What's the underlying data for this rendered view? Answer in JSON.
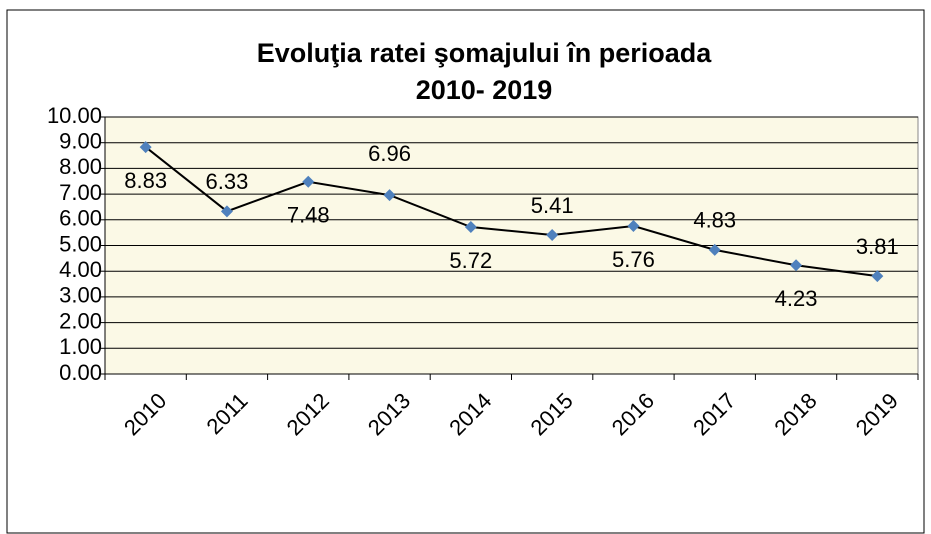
{
  "chart_data": {
    "type": "line",
    "title": [
      "Evoluţia ratei şomajului în perioada",
      "2010- 2019"
    ],
    "categories": [
      "2010",
      "2011",
      "2012",
      "2013",
      "2014",
      "2015",
      "2016",
      "2017",
      "2018",
      "2019"
    ],
    "values": [
      8.83,
      6.33,
      7.48,
      6.96,
      5.72,
      5.41,
      5.76,
      4.83,
      4.23,
      3.81
    ],
    "line_color": "#000000",
    "marker_color": "#4f81bd",
    "ylim": [
      0,
      10
    ],
    "yticks": [
      {
        "value": 0,
        "label": "0.00"
      },
      {
        "value": 1,
        "label": "1.00"
      },
      {
        "value": 2,
        "label": "2.00"
      },
      {
        "value": 3,
        "label": "3.00"
      },
      {
        "value": 4,
        "label": "4.00"
      },
      {
        "value": 5,
        "label": "5.00"
      },
      {
        "value": 6,
        "label": "6.00"
      },
      {
        "value": 7,
        "label": "7.00"
      },
      {
        "value": 8,
        "label": "8.00"
      },
      {
        "value": 9,
        "label": "9.00"
      },
      {
        "value": 10,
        "label": "10.00"
      }
    ],
    "grid": true
  }
}
